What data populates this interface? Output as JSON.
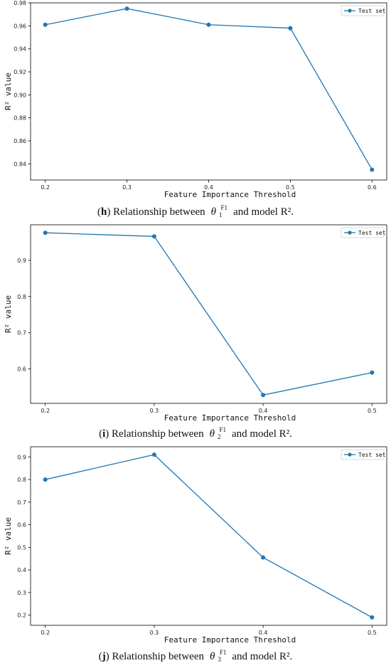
{
  "chart_data": [
    {
      "type": "line",
      "x": [
        0.2,
        0.3,
        0.4,
        0.5,
        0.6
      ],
      "xticks": [
        "0.2",
        "0.3",
        "0.4",
        "0.5",
        "0.6"
      ],
      "series": [
        {
          "name": "Test set",
          "values": [
            0.961,
            0.975,
            0.961,
            0.958,
            0.835
          ],
          "color": "#1f77b4"
        }
      ],
      "xlabel": "Feature Importance Threshold",
      "ylabel": "R² value",
      "ylim": [
        0.826,
        0.98
      ],
      "yticks": [
        0.84,
        0.86,
        0.88,
        0.9,
        0.92,
        0.94,
        0.96,
        0.98
      ],
      "ytick_labels": [
        "0.84",
        "0.86",
        "0.88",
        "0.90",
        "0.92",
        "0.94",
        "0.96",
        "0.98"
      ],
      "legend": "top-right",
      "grid": false
    },
    {
      "type": "line",
      "x": [
        0.2,
        0.3,
        0.4,
        0.5
      ],
      "xticks": [
        "0.2",
        "0.3",
        "0.4",
        "0.5"
      ],
      "series": [
        {
          "name": "Test set",
          "values": [
            0.976,
            0.966,
            0.528,
            0.59
          ],
          "color": "#1f77b4"
        }
      ],
      "xlabel": "Feature Importance Threshold",
      "ylabel": "R² value",
      "ylim": [
        0.505,
        0.998
      ],
      "yticks": [
        0.6,
        0.7,
        0.8,
        0.9
      ],
      "ytick_labels": [
        "0.6",
        "0.7",
        "0.8",
        "0.9"
      ],
      "legend": "top-right",
      "grid": false
    },
    {
      "type": "line",
      "x": [
        0.2,
        0.3,
        0.4,
        0.5
      ],
      "xticks": [
        "0.2",
        "0.3",
        "0.4",
        "0.5"
      ],
      "series": [
        {
          "name": "Test set",
          "values": [
            0.8,
            0.91,
            0.455,
            0.19
          ],
          "color": "#1f77b4"
        }
      ],
      "xlabel": "Feature Importance Threshold",
      "ylabel": "R² value",
      "ylim": [
        0.155,
        0.945
      ],
      "yticks": [
        0.2,
        0.3,
        0.4,
        0.5,
        0.6,
        0.7,
        0.8,
        0.9
      ],
      "ytick_labels": [
        "0.2",
        "0.3",
        "0.4",
        "0.5",
        "0.6",
        "0.7",
        "0.8",
        "0.9"
      ],
      "legend": "top-right",
      "grid": false
    }
  ],
  "captions": [
    {
      "letter": "h",
      "pre": "(",
      "post": ") Relationship between",
      "theta": "θ",
      "sub": "1",
      "sup": "F1",
      "tail": "and model R²."
    },
    {
      "letter": "i",
      "pre": "(",
      "post": ") Relationship between",
      "theta": "θ",
      "sub": "2",
      "sup": "F1",
      "tail": "and model R²."
    },
    {
      "letter": "j",
      "pre": "(",
      "post": ") Relationship between",
      "theta": "θ",
      "sub": "3",
      "sup": "F1",
      "tail": "and model R²."
    }
  ],
  "colors": {
    "line": "#1f77b4",
    "axis": "#000000"
  }
}
